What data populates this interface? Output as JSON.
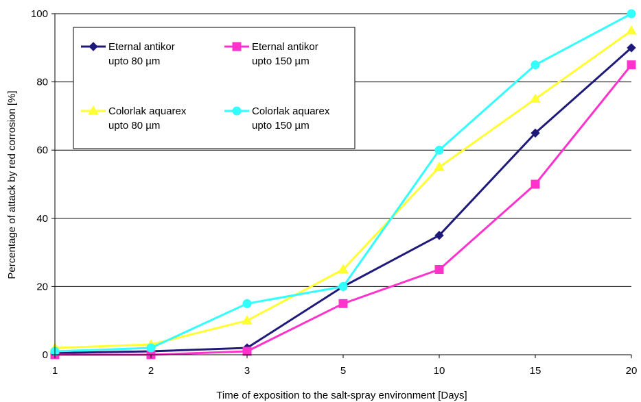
{
  "chart_data": {
    "type": "line",
    "title": "",
    "xlabel": "Time of exposition to the salt-spray environment [Days]",
    "ylabel": "Percentage of attack by red corrosion [%]",
    "categories": [
      "1",
      "2",
      "3",
      "5",
      "10",
      "15",
      "20"
    ],
    "ylim": [
      0,
      100
    ],
    "yticks": [
      "0",
      "20",
      "40",
      "60",
      "80",
      "100"
    ],
    "grid": true,
    "legend_position": "top-left",
    "series": [
      {
        "name_line1": "Eternal antikor",
        "name_line2": "upto 80 µm",
        "color": "#1f1a7a",
        "marker": "diamond",
        "values": [
          0.5,
          1,
          2,
          20,
          35,
          65,
          90
        ]
      },
      {
        "name_line1": "Eternal antikor",
        "name_line2": "upto 150 µm",
        "color": "#ff33cc",
        "marker": "square",
        "values": [
          0,
          0,
          1,
          15,
          25,
          50,
          85
        ]
      },
      {
        "name_line1": "Colorlak aquarex",
        "name_line2": "upto 80 µm",
        "color": "#ffff33",
        "marker": "triangle",
        "values": [
          2,
          3,
          10,
          25,
          55,
          75,
          95
        ]
      },
      {
        "name_line1": "Colorlak aquarex",
        "name_line2": "upto 150 µm",
        "color": "#33ffff",
        "marker": "circle",
        "values": [
          1,
          2,
          15,
          20,
          60,
          85,
          100
        ]
      }
    ]
  }
}
